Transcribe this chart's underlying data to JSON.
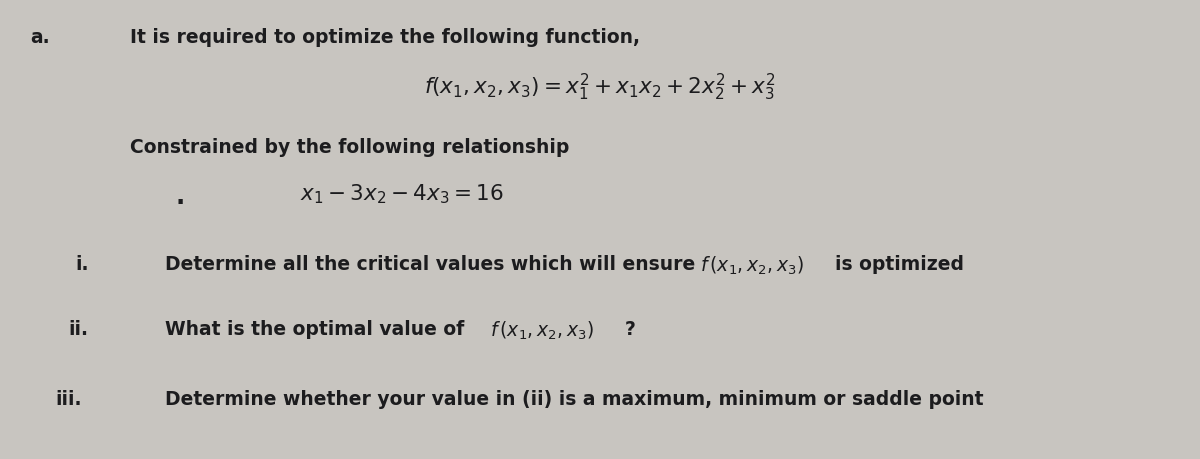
{
  "bg_color": "#c8c5c0",
  "text_color": "#1c1c1e",
  "fig_width": 12.0,
  "fig_height": 4.6,
  "label_a": "a.",
  "line1": "It is required to optimize the following function,",
  "line2_math": "$f(x_1, x_2, x_3) = x_1^2 + x_1x_2 + 2x_2^2 + x_3^2$",
  "line3": "Constrained by the following relationship",
  "line4_math": "$x_1 - 3x_2 - 4x_3 = 16$",
  "label_i": "i.",
  "line_i_plain": "Determine all the critical values which will ensure ",
  "line_i_math": "$f\\,(x_1, x_2, x_3)$",
  "line_i_end": "is optimized",
  "label_ii": "ii.",
  "line_ii_plain": "What is the optimal value of ",
  "line_ii_math": "$f\\,(x_1, x_2, x_3)$",
  "line_ii_end": "?",
  "label_iii": "iii.",
  "line_iii": "Determine whether your value in (ii) is a maximum, minimum or saddle point",
  "fs_main": 13.5,
  "fs_math_big": 15.5,
  "fs_math_mid": 14.5
}
